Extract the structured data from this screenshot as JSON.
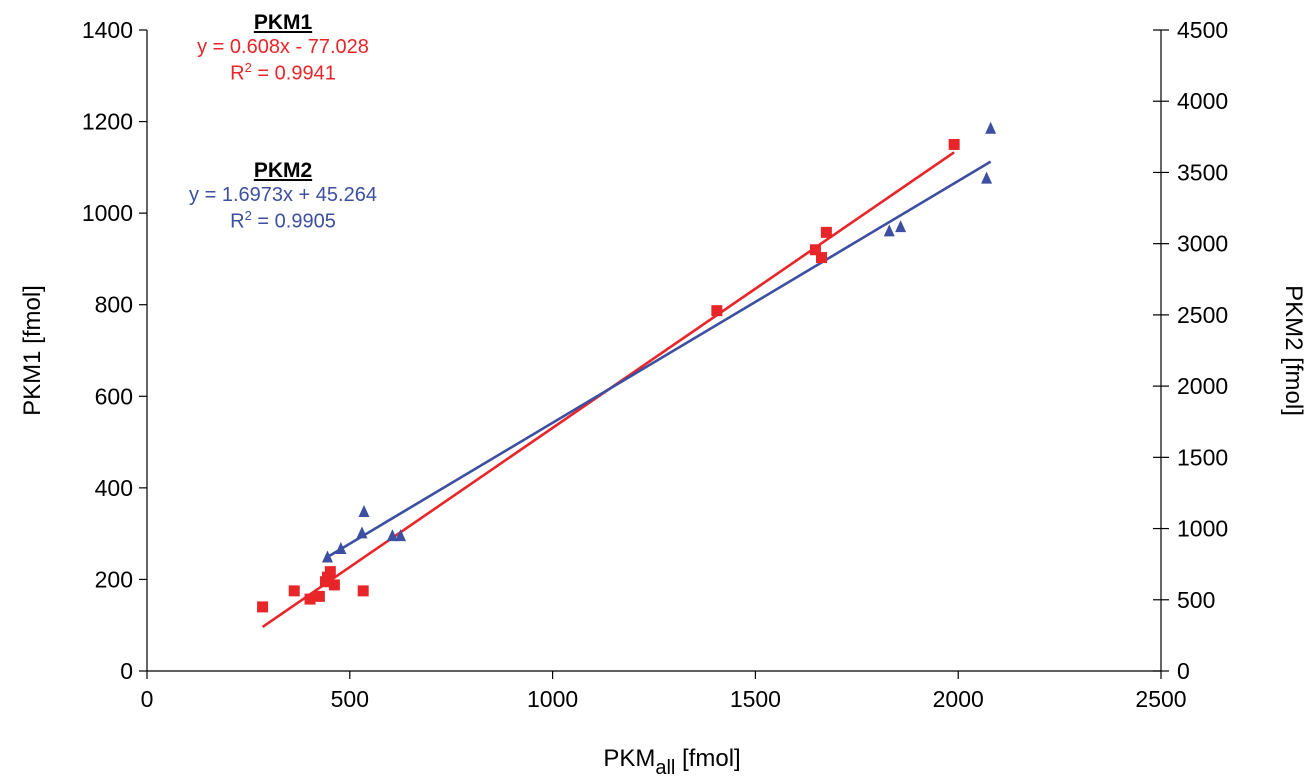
{
  "chart_data": {
    "type": "scatter",
    "title": "",
    "xlabel": "PKM",
    "xlabel_sub": "all",
    "xlabel_unit": " [fmol]",
    "ylabel": "PKM1 [fmol]",
    "y2label": "PKM2 [fmol]",
    "xlim": [
      0,
      2500
    ],
    "ylim": [
      0,
      1400
    ],
    "y2lim": [
      0,
      4500
    ],
    "xticks": [
      "0",
      "500",
      "1000",
      "1500",
      "2000",
      "2500"
    ],
    "yticks": [
      "0",
      "200",
      "400",
      "600",
      "800",
      "1000",
      "1200",
      "1400"
    ],
    "y2ticks": [
      "0",
      "500",
      "1000",
      "1500",
      "2000",
      "2500",
      "3000",
      "3500",
      "4000",
      "4500"
    ],
    "grid": false,
    "colors": {
      "pkm1": "#e8262a",
      "pkm2": "#3c4fa0"
    },
    "series": [
      {
        "name": "PKM1",
        "axis": "left",
        "marker": "square",
        "points": [
          [
            285,
            140
          ],
          [
            363,
            175
          ],
          [
            402,
            157
          ],
          [
            425,
            163
          ],
          [
            440,
            195
          ],
          [
            445,
            205
          ],
          [
            452,
            217
          ],
          [
            462,
            188
          ],
          [
            533,
            175
          ],
          [
            1405,
            787
          ],
          [
            1648,
            920
          ],
          [
            1663,
            903
          ],
          [
            1675,
            958
          ],
          [
            1990,
            1150
          ]
        ]
      },
      {
        "name": "PKM2",
        "axis": "right",
        "marker": "triangle",
        "points": [
          [
            445,
            800
          ],
          [
            478,
            860
          ],
          [
            530,
            970
          ],
          [
            535,
            1120
          ],
          [
            605,
            950
          ],
          [
            625,
            950
          ],
          [
            1830,
            3090
          ],
          [
            1858,
            3120
          ],
          [
            2070,
            3460
          ],
          [
            2080,
            3810
          ]
        ]
      }
    ],
    "annotations": [
      {
        "header": "PKM1",
        "equation": "y = 0.608x - 77.028",
        "r2_prefix": "R",
        "r2_exp": "2",
        "r2_value": " = 0.9941"
      },
      {
        "header": "PKM2",
        "equation": "y = 1.6973x + 45.264",
        "r2_prefix": "R",
        "r2_exp": "2",
        "r2_value": " = 0.9905"
      }
    ],
    "trendlines": [
      {
        "series": "PKM1",
        "slope": 0.608,
        "intercept": -77.028,
        "x_range": [
          285,
          1990
        ]
      },
      {
        "series": "PKM2",
        "slope": 1.6973,
        "intercept": 45.264,
        "x_range": [
          445,
          2080
        ]
      }
    ]
  }
}
